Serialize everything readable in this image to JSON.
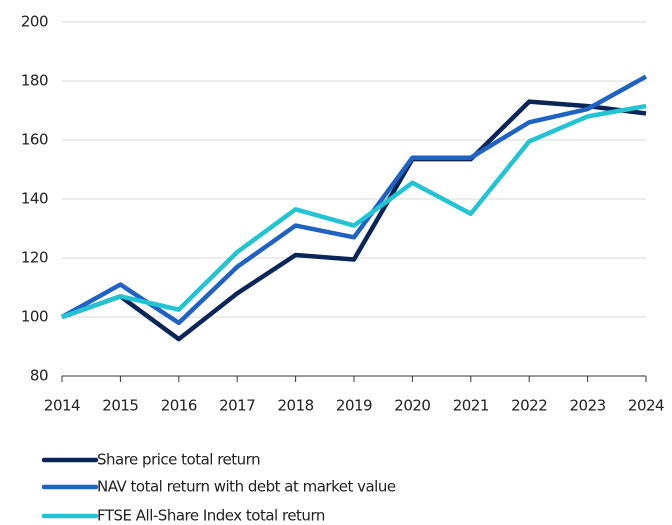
{
  "chart_data": {
    "type": "line",
    "categories": [
      "2014",
      "2015",
      "2016",
      "2017",
      "2018",
      "2019",
      "2020",
      "2021",
      "2022",
      "2023",
      "2024"
    ],
    "series": [
      {
        "name": "Share price total return",
        "color": "#0b2559",
        "values": [
          100,
          107,
          92.5,
          108,
          121,
          119.5,
          153.5,
          153.5,
          173,
          171.5,
          169
        ]
      },
      {
        "name": "NAV total return with debt at market value",
        "color": "#1f62c4",
        "values": [
          100,
          111,
          98,
          117,
          131,
          127,
          154,
          154,
          166,
          170.5,
          181.5
        ]
      },
      {
        "name": "FTSE All-Share Index total return",
        "color": "#22c3d3",
        "values": [
          100,
          107,
          102.5,
          122,
          136.5,
          131,
          145.5,
          135,
          159.5,
          168,
          171.5
        ]
      }
    ],
    "ylim": [
      80,
      200
    ],
    "yticks": [
      80,
      100,
      120,
      140,
      160,
      180,
      200
    ],
    "grid": true,
    "legend": "bottom-left"
  }
}
